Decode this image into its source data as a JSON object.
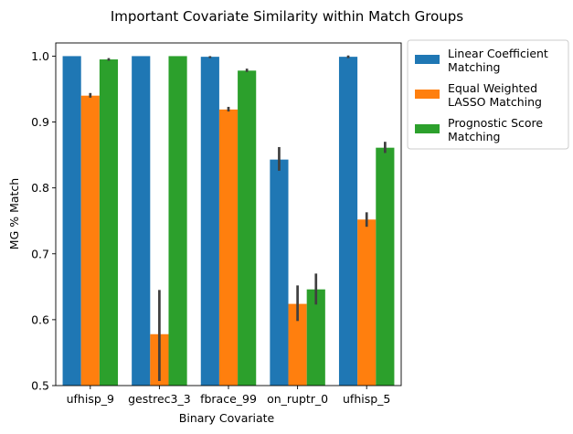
{
  "chart_data": {
    "type": "bar",
    "title": "Important Covariate Similarity within Match Groups",
    "xlabel": "Binary Covariate",
    "ylabel": "MG % Match",
    "ylim": [
      0.5,
      1.02
    ],
    "yticks": [
      "0.5",
      "0.6",
      "0.7",
      "0.8",
      "0.9",
      "1.0"
    ],
    "categories": [
      "ufhisp_9",
      "gestrec3_3",
      "fbrace_99",
      "on_ruptr_0",
      "ufhisp_5"
    ],
    "legend_position": "outside-top-right",
    "grid": false,
    "series": [
      {
        "name": "Linear Coefficient Matching",
        "legend_lines": [
          "Linear Coefficient",
          "Matching"
        ],
        "color": "#1f77b4",
        "values": [
          1.0,
          1.0,
          0.999,
          0.843,
          0.999
        ],
        "error_low": [
          null,
          null,
          0.997,
          0.826,
          0.997
        ],
        "error_high": [
          null,
          null,
          1.0,
          0.862,
          1.001
        ]
      },
      {
        "name": "Equal Weighted LASSO Matching",
        "legend_lines": [
          "Equal Weighted",
          "LASSO Matching"
        ],
        "color": "#ff7f0e",
        "values": [
          0.94,
          0.578,
          0.919,
          0.624,
          0.752
        ],
        "error_low": [
          0.937,
          0.507,
          0.916,
          0.598,
          0.741
        ],
        "error_high": [
          0.944,
          0.645,
          0.923,
          0.652,
          0.763
        ]
      },
      {
        "name": "Prognostic Score Matching",
        "legend_lines": [
          "Prognostic Score",
          "Matching"
        ],
        "color": "#2ca02c",
        "values": [
          0.995,
          1.0,
          0.978,
          0.646,
          0.861
        ],
        "error_low": [
          0.993,
          null,
          0.976,
          0.623,
          0.853
        ],
        "error_high": [
          0.997,
          null,
          0.981,
          0.67,
          0.87
        ]
      }
    ]
  }
}
